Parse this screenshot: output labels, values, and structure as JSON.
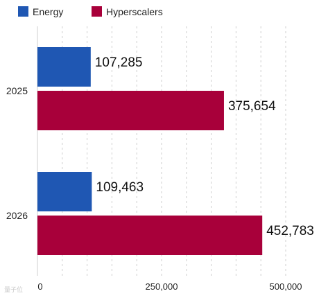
{
  "chart_data": {
    "type": "bar",
    "orientation": "horizontal",
    "categories": [
      "2025",
      "2026"
    ],
    "series": [
      {
        "name": "Energy",
        "values": [
          107285,
          109463
        ],
        "labels": [
          "107,285",
          "109,463"
        ],
        "color": "#1f57b3"
      },
      {
        "name": "Hyperscalers",
        "values": [
          375654,
          452783
        ],
        "labels": [
          "375,654",
          "452,783"
        ],
        "color": "#a8003a"
      }
    ],
    "xlim": [
      0,
      500000
    ],
    "x_ticks": [
      0,
      250000,
      500000
    ],
    "x_tick_labels": [
      "0",
      "250,000",
      "500,000"
    ],
    "grid": "vertical dashed",
    "legend": "top-left",
    "title": "",
    "xlabel": "",
    "ylabel": ""
  },
  "watermark": "量子位"
}
